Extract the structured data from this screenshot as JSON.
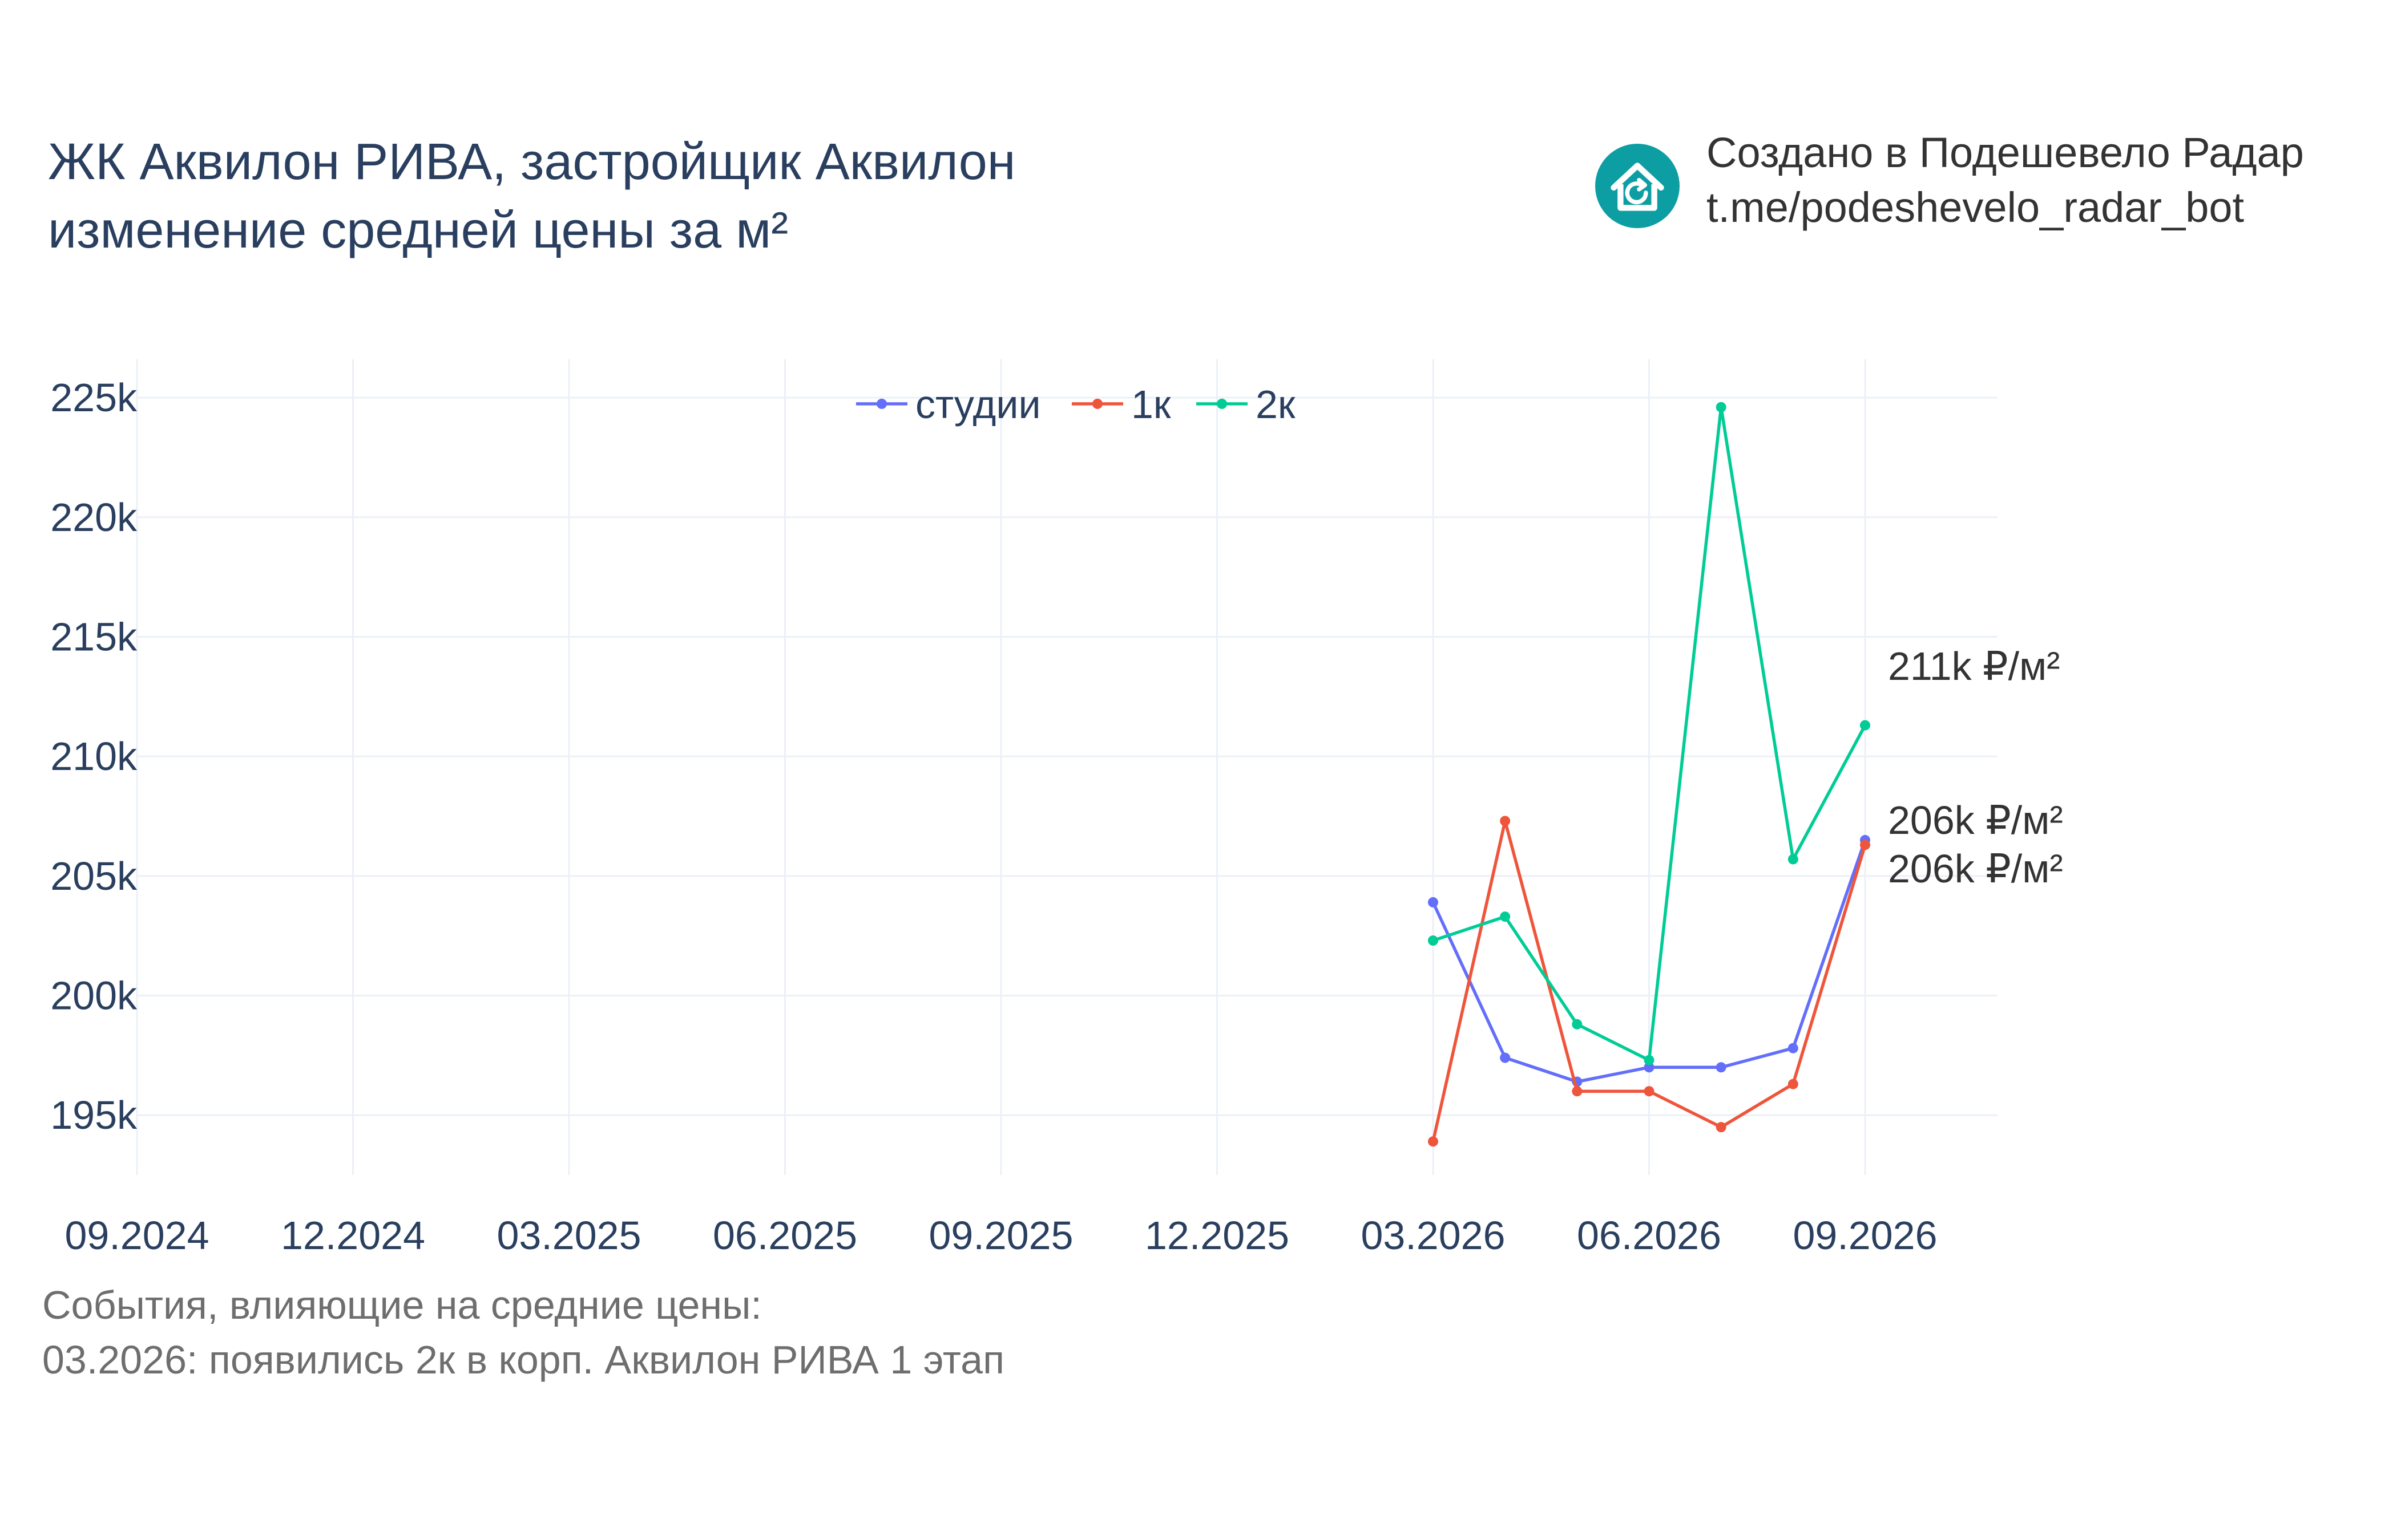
{
  "header": {
    "title_line1": "ЖК Аквилон РИВА, застройщик Аквилон",
    "title_line2": "изменение средней цены за м²"
  },
  "brand": {
    "line1": "Создано в Подешевело Радар",
    "line2": "t.me/podeshevelo_radar_bot",
    "logo_icon": "house-refresh-icon",
    "logo_color": "#0d9ea3"
  },
  "events": {
    "heading": "События, влияющие на средние цены:",
    "items": [
      "03.2026: появились 2к в корп. Аквилон РИВА 1 этап"
    ]
  },
  "chart_data": {
    "type": "line",
    "x_ticks": [
      "09.2024",
      "12.2024",
      "03.2025",
      "06.2025",
      "09.2025",
      "12.2025",
      "03.2026",
      "06.2026",
      "09.2026"
    ],
    "x": [
      "03.2026",
      "04.2026",
      "05.2026",
      "06.2026",
      "07.2026",
      "08.2026",
      "09.2026"
    ],
    "y_ticks": [
      195000,
      200000,
      205000,
      210000,
      215000,
      220000,
      225000
    ],
    "y_tick_labels": [
      "195k",
      "200k",
      "205k",
      "210k",
      "215k",
      "220k",
      "225k"
    ],
    "ylim": [
      192500,
      226600
    ],
    "grid": true,
    "legend_position": "top-center",
    "series": [
      {
        "name": "студии",
        "color": "#636efa",
        "values": [
          203900,
          197400,
          196400,
          197000,
          197000,
          197800,
          206500
        ]
      },
      {
        "name": "1к",
        "color": "#ef553b",
        "values": [
          193900,
          207300,
          196000,
          196000,
          194500,
          196300,
          206300
        ]
      },
      {
        "name": "2к",
        "color": "#00cc96",
        "values": [
          202300,
          203300,
          198800,
          197300,
          224600,
          205700,
          211300
        ]
      }
    ],
    "end_labels": [
      "211k ₽/м²",
      "206k ₽/м²",
      "206k ₽/м²"
    ]
  }
}
